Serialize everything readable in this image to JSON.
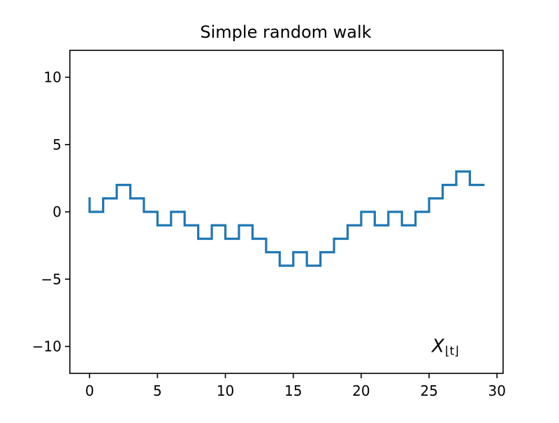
{
  "chart_data": {
    "type": "line",
    "title": "Simple random walk",
    "xlabel": "",
    "ylabel": "",
    "xlim": [
      -1.45,
      30.45
    ],
    "ylim": [
      -12,
      12
    ],
    "x_ticks": [
      0,
      5,
      10,
      15,
      20,
      25,
      30
    ],
    "y_ticks": [
      -10,
      -5,
      0,
      5,
      10
    ],
    "x_tick_labels": [
      "0",
      "5",
      "10",
      "15",
      "20",
      "25",
      "30"
    ],
    "y_tick_labels": [
      "−10",
      "−5",
      "0",
      "5",
      "10"
    ],
    "grid": false,
    "annotation": {
      "main": "X",
      "subscript": "⌊t⌋",
      "position_data": [
        25.2,
        -10
      ]
    },
    "series": [
      {
        "color": "#1f77b4",
        "style": "step",
        "x": [
          0,
          0,
          1,
          1,
          2,
          2,
          3,
          3,
          4,
          4,
          5,
          5,
          6,
          6,
          7,
          7,
          8,
          8,
          9,
          9,
          10,
          10,
          11,
          11,
          12,
          12,
          13,
          13,
          14,
          14,
          15,
          15,
          16,
          16,
          17,
          17,
          18,
          18,
          19,
          19,
          20,
          20,
          21,
          21,
          22,
          22,
          23,
          23,
          24,
          24,
          25,
          25,
          26,
          26,
          27,
          27,
          28,
          28,
          29
        ],
        "y": [
          1,
          0,
          0,
          1,
          1,
          2,
          2,
          1,
          1,
          0,
          0,
          -1,
          -1,
          0,
          0,
          -1,
          -1,
          -2,
          -2,
          -1,
          -1,
          -2,
          -2,
          -1,
          -1,
          -2,
          -2,
          -3,
          -3,
          -4,
          -4,
          -3,
          -3,
          -4,
          -4,
          -3,
          -3,
          -2,
          -2,
          -1,
          -1,
          0,
          0,
          -1,
          -1,
          0,
          0,
          -1,
          -1,
          0,
          0,
          1,
          1,
          2,
          2,
          3,
          3,
          2,
          2
        ]
      }
    ]
  }
}
